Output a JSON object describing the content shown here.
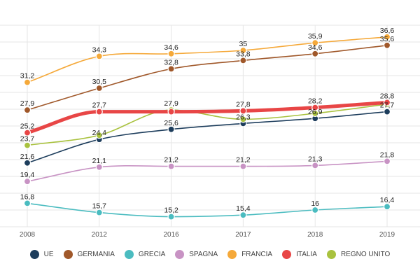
{
  "chart_data": {
    "type": "line",
    "title": "",
    "xlabel": "",
    "ylabel": "",
    "categories": [
      "2008",
      "2012",
      "2016",
      "2017",
      "2018",
      "2019"
    ],
    "ylim": [
      14,
      38
    ],
    "grid": true,
    "y_grid_step": 2,
    "legend_position": "bottom",
    "series": [
      {
        "name": "UE",
        "color": "#1d3d5c",
        "values": [
          21.6,
          24.4,
          25.6,
          26.3,
          26.9,
          27.7
        ],
        "labels": [
          "21,6",
          "24,4",
          "25,6",
          "26,3",
          "26,9",
          "27,7"
        ]
      },
      {
        "name": "GERMANIA",
        "color": "#a0582a",
        "values": [
          27.9,
          30.5,
          32.8,
          33.8,
          34.6,
          35.6
        ],
        "labels": [
          "27,9",
          "30,5",
          "32,8",
          "33,8",
          "34,6",
          "35,6"
        ]
      },
      {
        "name": "GRECIA",
        "color": "#4bbcc0",
        "values": [
          16.8,
          15.7,
          15.2,
          15.4,
          16,
          16.4
        ],
        "labels": [
          "16,8",
          "15,7",
          "15,2",
          "15,4",
          "16",
          "16,4"
        ]
      },
      {
        "name": "SPAGNA",
        "color": "#c893c4",
        "values": [
          19.4,
          21.1,
          21.2,
          21.2,
          21.3,
          21.8
        ],
        "labels": [
          "19,4",
          "21,1",
          "21,2",
          "21,2",
          "21,3",
          "21,8"
        ]
      },
      {
        "name": "FRANCIA",
        "color": "#f5a93a",
        "values": [
          31.2,
          34.3,
          34.6,
          35,
          35.9,
          36.6
        ],
        "labels": [
          "31,2",
          "34,3",
          "34,6",
          "35",
          "35,9",
          "36,6"
        ]
      },
      {
        "name": "ITALIA",
        "color": "#e84646",
        "values": [
          25.2,
          27.7,
          27.7,
          27.8,
          28.2,
          28.8
        ],
        "labels": [
          "25,2",
          "27,7",
          "",
          "27,8",
          "28,2",
          "28,8"
        ]
      },
      {
        "name": "REGNO UNITO",
        "color": "#a9c23f",
        "values": [
          23.7,
          24.9,
          27.9,
          26.8,
          27.5,
          28.6
        ],
        "labels": [
          "23,7",
          "",
          "27,9",
          "",
          "",
          ""
        ]
      }
    ]
  }
}
